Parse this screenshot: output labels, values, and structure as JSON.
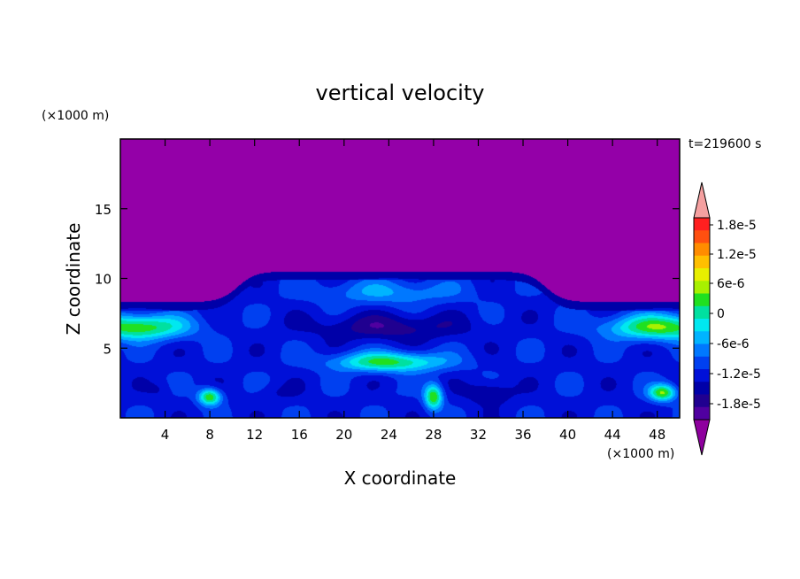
{
  "chart_data": {
    "type": "heatmap",
    "title": "vertical velocity",
    "xlabel": "X coordinate",
    "ylabel": "Z coordinate",
    "x_unit": "(×1000 m)",
    "y_unit": "(×1000 m)",
    "time_label": "t=219600 s",
    "xlim": [
      0,
      50
    ],
    "ylim": [
      0,
      20
    ],
    "x_ticks": [
      4,
      8,
      12,
      16,
      20,
      24,
      28,
      32,
      36,
      40,
      44,
      48
    ],
    "y_ticks": [
      5,
      10,
      15
    ],
    "colorbar": {
      "labels": [
        "1.8e-5",
        "1.2e-5",
        "6e-6",
        "0",
        "-6e-6",
        "-1.2e-5",
        "-1.8e-5"
      ],
      "colors": [
        "#ff2020",
        "#ff5010",
        "#ff8c00",
        "#ffbf00",
        "#e8ef00",
        "#a8f000",
        "#20e020",
        "#00e0a0",
        "#00e8f0",
        "#00b4ff",
        "#0078ff",
        "#0040f0",
        "#0010d8",
        "#0000a8",
        "#200090",
        "#5000a0"
      ],
      "over_color": "#f5a0a0",
      "under_color": "#8e009e"
    },
    "background_color": "#9400a8",
    "features": [
      {
        "x": 24,
        "z": 9.0,
        "wx": 6.5,
        "wz": 0.9,
        "value": -6e-06
      },
      {
        "x": 24,
        "z": 6.5,
        "wx": 6.5,
        "wz": 0.9,
        "value": -2e-05
      },
      {
        "x": 24,
        "z": 4.0,
        "wx": 5.0,
        "wz": 0.7,
        "value": 4e-06
      },
      {
        "x": 1.5,
        "z": 6.5,
        "wx": 4.5,
        "wz": 0.9,
        "value": 6e-06
      },
      {
        "x": 48.5,
        "z": 6.5,
        "wx": 5.0,
        "wz": 0.9,
        "value": 6e-06
      },
      {
        "x": 8,
        "z": 1.5,
        "wx": 1.0,
        "wz": 0.6,
        "value": 6e-06
      },
      {
        "x": 28,
        "z": 1.5,
        "wx": 0.8,
        "wz": 0.9,
        "value": 6e-06
      },
      {
        "x": 48.5,
        "z": 1.8,
        "wx": 1.2,
        "wz": 0.6,
        "value": 6e-06
      },
      {
        "x": 33,
        "z": 1.8,
        "wx": 2.0,
        "wz": 0.8,
        "value": -1.9e-05
      },
      {
        "x": 14,
        "z": 1.8,
        "wx": 2.0,
        "wz": 0.6,
        "value": -1.5e-05
      },
      {
        "x": 3.5,
        "z": 2.0,
        "wx": 1.0,
        "wz": 0.6,
        "value": -1.5e-05
      },
      {
        "x": 24,
        "z": 1.8,
        "wx": 1.0,
        "wz": 0.5,
        "value": -1.2e-05
      }
    ]
  }
}
